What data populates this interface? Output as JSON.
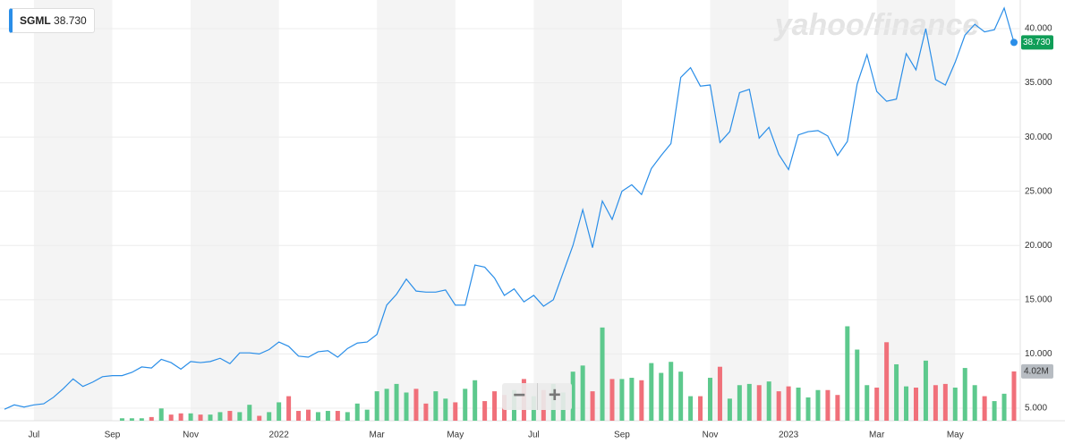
{
  "chart_data": {
    "type": "line",
    "watermark": "yahoo/finance",
    "categories": [
      null,
      null,
      null,
      "Jul",
      null,
      null,
      null,
      null,
      null,
      null,
      null,
      "Sep",
      null,
      null,
      null,
      null,
      null,
      null,
      null,
      "Nov",
      null,
      null,
      null,
      null,
      null,
      null,
      null,
      null,
      "2022",
      null,
      null,
      null,
      null,
      null,
      null,
      null,
      null,
      null,
      "Mar",
      null,
      null,
      null,
      null,
      null,
      null,
      null,
      "May",
      null,
      null,
      null,
      null,
      null,
      null,
      null,
      "Jul",
      null,
      null,
      null,
      null,
      null,
      null,
      null,
      null,
      "Sep",
      null,
      null,
      null,
      null,
      null,
      null,
      null,
      null,
      "Nov",
      null,
      null,
      null,
      null,
      null,
      null,
      null,
      "2023",
      null,
      null,
      null,
      null,
      null,
      null,
      null,
      null,
      "Mar",
      null,
      null,
      null,
      null,
      null,
      null,
      null,
      "May",
      null,
      null,
      null,
      null,
      null,
      null
    ],
    "series": [
      {
        "name": "SGML",
        "color": "#2a8ee8",
        "last_label": "38.730",
        "label_color": "#109e58",
        "values": [
          4.9,
          5.3,
          5.1,
          5.3,
          5.4,
          6.0,
          6.8,
          7.7,
          7.0,
          7.4,
          7.9,
          8.0,
          8.0,
          8.3,
          8.8,
          8.7,
          9.5,
          9.2,
          8.6,
          9.3,
          9.2,
          9.3,
          9.6,
          9.1,
          10.1,
          10.1,
          10.0,
          10.4,
          11.1,
          10.7,
          9.8,
          9.7,
          10.2,
          10.3,
          9.7,
          10.5,
          11.0,
          11.1,
          11.8,
          14.5,
          15.5,
          16.9,
          15.8,
          15.7,
          15.7,
          15.9,
          14.5,
          14.5,
          18.2,
          18.0,
          17.0,
          15.4,
          16.0,
          14.8,
          15.4,
          14.4,
          15.0,
          17.5,
          20.0,
          23.3,
          19.8,
          24.1,
          22.4,
          25.0,
          25.6,
          24.7,
          27.1,
          28.3,
          29.4,
          35.5,
          36.4,
          34.7,
          34.8,
          29.5,
          30.5,
          34.1,
          34.4,
          29.9,
          30.9,
          28.4,
          27.0,
          30.2,
          30.5,
          30.6,
          30.1,
          28.3,
          29.6,
          34.9,
          37.6,
          34.2,
          33.3,
          33.5,
          37.7,
          36.2,
          40.0,
          35.3,
          34.8,
          36.9,
          39.4,
          40.4,
          39.7,
          39.9,
          41.9,
          38.73
        ]
      },
      {
        "name": "Volume",
        "type": "bar",
        "axis": "y2",
        "up_color": "#5dc98d",
        "down_color": "#f0707a",
        "last_label": "4.02M",
        "label_color": "#b7bcc2",
        "values": [
          null,
          null,
          null,
          null,
          null,
          null,
          null,
          null,
          null,
          null,
          null,
          null,
          0.2,
          0.2,
          0.2,
          0.3,
          1.0,
          0.5,
          0.6,
          0.6,
          0.5,
          0.5,
          0.7,
          0.8,
          0.7,
          1.3,
          0.4,
          0.7,
          1.5,
          2.0,
          0.8,
          0.9,
          0.7,
          0.8,
          0.8,
          0.7,
          1.4,
          0.9,
          2.4,
          2.6,
          3.0,
          2.3,
          2.6,
          1.4,
          2.4,
          1.8,
          1.5,
          2.6,
          3.3,
          1.6,
          2.4,
          2.1,
          2.5,
          3.4,
          2.0,
          2.5,
          3.0,
          2.3,
          4.0,
          4.5,
          2.4,
          7.6,
          3.4,
          3.4,
          3.5,
          3.3,
          4.7,
          3.9,
          4.8,
          4.0,
          2.0,
          2.0,
          3.5,
          4.4,
          1.8,
          2.9,
          3.0,
          2.9,
          3.2,
          2.4,
          2.8,
          2.7,
          1.9,
          2.5,
          2.5,
          2.1,
          7.7,
          5.8,
          2.9,
          2.7,
          6.4,
          4.6,
          2.8,
          2.7,
          4.9,
          2.9,
          3.0,
          2.7,
          4.3,
          2.9,
          2.0,
          1.6,
          2.2,
          4.02
        ]
      }
    ],
    "ylim": [
      3.84,
      42.64
    ],
    "yticks": [
      {
        "value": 5,
        "label": "5.000"
      },
      {
        "value": 10,
        "label": "10.000"
      },
      {
        "value": 15,
        "label": "15.000"
      },
      {
        "value": 20,
        "label": "20.000"
      },
      {
        "value": 25,
        "label": "25.000"
      },
      {
        "value": 30,
        "label": "30.000"
      },
      {
        "value": 35,
        "label": "35.000"
      },
      {
        "value": 40,
        "label": "40.000"
      }
    ],
    "y2lim": [
      0,
      34.3
    ],
    "grid": true
  }
}
